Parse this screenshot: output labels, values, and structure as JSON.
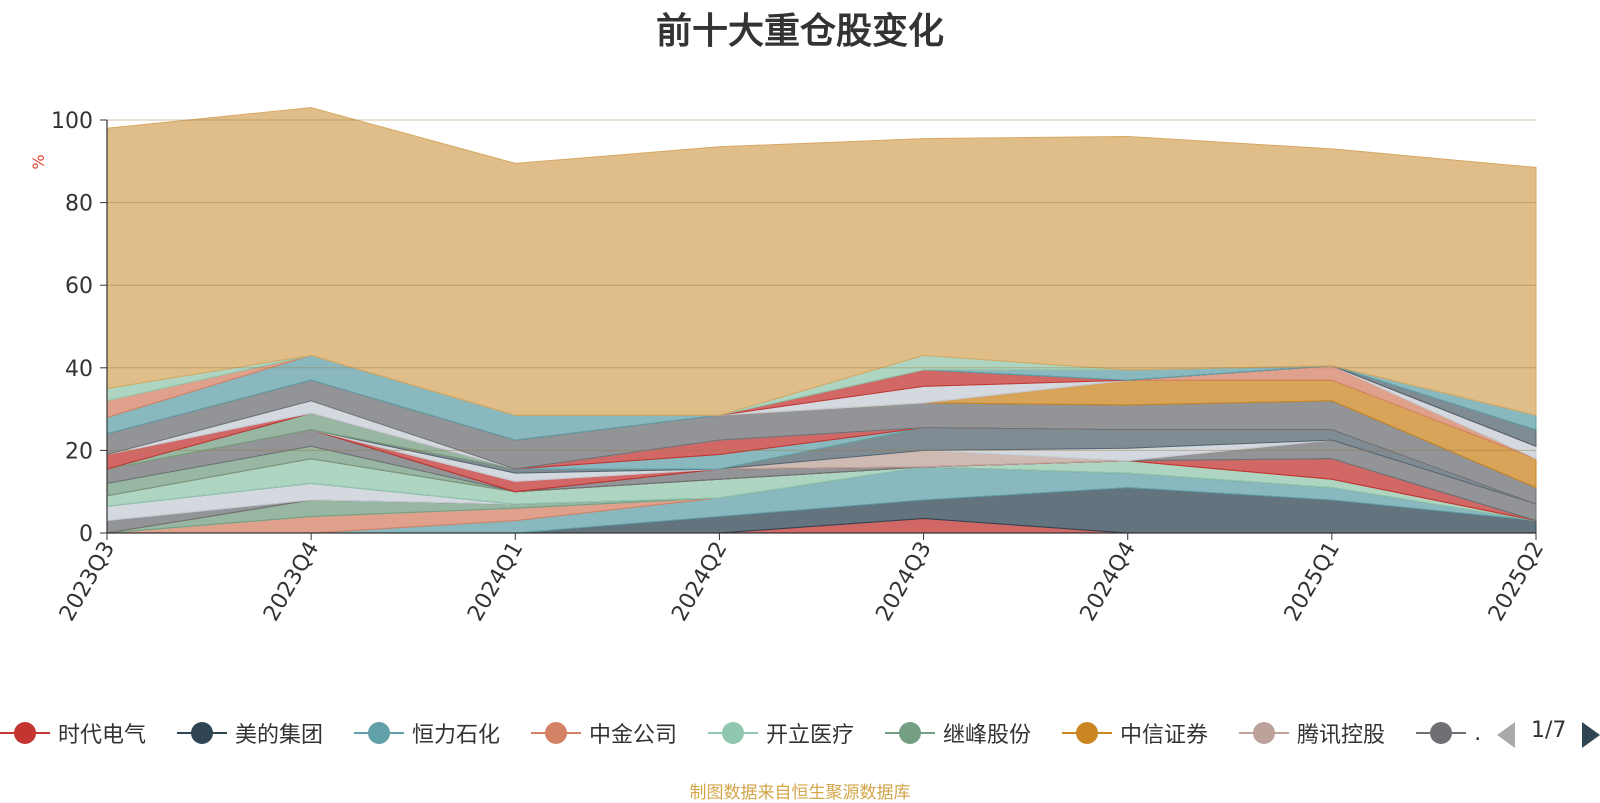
{
  "page": {
    "title": "前十大重仓股变化",
    "source": "制图数据来自恒生聚源数据库",
    "pager": "1/7"
  },
  "chart_data": {
    "type": "area",
    "stacked": true,
    "title": "前十大重仓股变化",
    "ylabel": "%",
    "xlabel": "",
    "ylim": [
      0,
      100
    ],
    "yticks": [
      0,
      20,
      40,
      60,
      80,
      100
    ],
    "grid": true,
    "legend_position": "bottom",
    "categories": [
      "2023Q3",
      "2023Q4",
      "2024Q1",
      "2024Q2",
      "2024Q3",
      "2024Q4",
      "2025Q1",
      "2025Q2"
    ],
    "series": [
      {
        "name": "时代电气",
        "color": "#c23531",
        "values": [
          0,
          0,
          0,
          0,
          3.5,
          0,
          0,
          0
        ]
      },
      {
        "name": "美的集团",
        "color": "#2f4554",
        "values": [
          0,
          0,
          0,
          4,
          4.5,
          11,
          8,
          3
        ]
      },
      {
        "name": "恒力石化",
        "color": "#61a0a8",
        "values": [
          0,
          0,
          3,
          4.5,
          8,
          3.5,
          3,
          0
        ]
      },
      {
        "name": "中金公司",
        "color": "#d48265",
        "values": [
          0,
          4,
          3,
          0,
          0,
          0,
          0,
          0
        ]
      },
      {
        "name": "开立医疗",
        "color": "#91c7ae",
        "values": [
          0,
          0,
          0,
          0,
          0,
          0,
          0,
          0
        ]
      },
      {
        "name": "继峰股份",
        "color": "#749f83",
        "values": [
          0,
          4,
          1,
          0,
          0,
          0,
          0,
          0
        ]
      },
      {
        "name": "中信证券",
        "color": "#ca8622",
        "values": [
          0,
          0,
          0,
          0,
          0,
          0,
          0,
          0
        ]
      },
      {
        "name": "腾讯控股",
        "color": "#bda29a",
        "values": [
          0,
          0,
          0,
          0,
          0,
          0,
          0,
          0
        ]
      },
      {
        "name": "…",
        "color": "#6e7074",
        "values": [
          3,
          0,
          0,
          0,
          0,
          0,
          0,
          0
        ]
      },
      {
        "name": "",
        "color": "#546570",
        "values": [
          0,
          0,
          0,
          0,
          0,
          0,
          0,
          0
        ]
      },
      {
        "name": "",
        "color": "#c4ccd3",
        "values": [
          3.5,
          4,
          0,
          0,
          0,
          0,
          0,
          0
        ]
      },
      {
        "name": "",
        "color": "#6e7074",
        "values": [
          0,
          0,
          0,
          0,
          0,
          0,
          0,
          0
        ]
      },
      {
        "name": "",
        "color": "#61a0a8",
        "values": [
          0,
          0,
          0,
          0,
          0,
          0,
          0,
          0
        ]
      },
      {
        "name": "",
        "color": "#91c7ae",
        "values": [
          2.5,
          6,
          3,
          4.5,
          0,
          3,
          2,
          0
        ]
      },
      {
        "name": "",
        "color": "#749f83",
        "values": [
          0,
          0,
          0,
          0,
          0,
          0,
          0,
          0
        ]
      },
      {
        "name": "",
        "color": "#d48265",
        "values": [
          0,
          0,
          0,
          0,
          0,
          0,
          0,
          0
        ]
      },
      {
        "name": "",
        "color": "#c23531",
        "values": [
          0,
          0,
          0,
          0,
          0,
          0,
          5,
          0
        ]
      },
      {
        "name": "",
        "color": "#749f83",
        "values": [
          3,
          3,
          0,
          0,
          0,
          0,
          0,
          0
        ]
      },
      {
        "name": "",
        "color": "#6e7074",
        "values": [
          3.5,
          4,
          0,
          2.5,
          0,
          0,
          4.5,
          4
        ]
      },
      {
        "name": "",
        "color": "#546570",
        "values": [
          0,
          0,
          0,
          0,
          0,
          0,
          0,
          0
        ]
      },
      {
        "name": "",
        "color": "#c23531",
        "values": [
          0,
          0,
          2.5,
          0,
          0,
          0,
          0,
          0
        ]
      },
      {
        "name": "",
        "color": "#bda29a",
        "values": [
          0,
          0,
          0,
          0,
          4,
          0,
          0,
          0
        ]
      },
      {
        "name": "",
        "color": "#c4ccd3",
        "values": [
          0,
          0,
          2,
          0,
          0,
          3,
          0,
          0
        ]
      },
      {
        "name": "",
        "color": "#546570",
        "values": [
          0,
          0,
          1,
          0,
          5.5,
          4.5,
          2.5,
          0
        ]
      },
      {
        "name": "",
        "color": "#ca8622",
        "values": [
          0,
          0,
          0,
          0,
          0,
          0,
          0,
          0
        ]
      },
      {
        "name": "",
        "color": "#749f83",
        "values": [
          0,
          4,
          0,
          0,
          0,
          0,
          0,
          0
        ]
      },
      {
        "name": "",
        "color": "#61a0a8",
        "values": [
          0,
          0,
          0,
          3.5,
          0,
          0,
          0,
          0
        ]
      },
      {
        "name": "",
        "color": "#c23531",
        "values": [
          3.5,
          0,
          0,
          3.5,
          0,
          0,
          0,
          0
        ]
      },
      {
        "name": "",
        "color": "#c4ccd3",
        "values": [
          0,
          3,
          0,
          0,
          0,
          0,
          0,
          0
        ]
      },
      {
        "name": "",
        "color": "#6e7074",
        "values": [
          5,
          5,
          7,
          6,
          6,
          6,
          7,
          4
        ]
      },
      {
        "name": "",
        "color": "#ca8622",
        "values": [
          0,
          0,
          0,
          0,
          0,
          6,
          5,
          7
        ]
      },
      {
        "name": "",
        "color": "#d48265",
        "values": [
          0,
          0,
          0,
          0,
          0,
          0,
          3.5,
          0
        ]
      },
      {
        "name": "",
        "color": "#c4ccd3",
        "values": [
          0,
          0,
          0,
          0,
          4,
          0,
          0,
          3
        ]
      },
      {
        "name": "",
        "color": "#c23531",
        "values": [
          0,
          0,
          0,
          0,
          4,
          0,
          0,
          0
        ]
      },
      {
        "name": "",
        "color": "#546570",
        "values": [
          0,
          0,
          0,
          0,
          0,
          0,
          0,
          4
        ]
      },
      {
        "name": "",
        "color": "#61a0a8",
        "values": [
          4,
          6,
          6,
          0,
          0,
          2.5,
          0,
          3.5
        ]
      },
      {
        "name": "",
        "color": "#d48265",
        "values": [
          4,
          0,
          0,
          0,
          0,
          0,
          0,
          0
        ]
      },
      {
        "name": "",
        "color": "#91c7ae",
        "values": [
          3,
          0,
          0,
          0,
          3.5,
          0,
          0,
          0
        ]
      },
      {
        "name": "",
        "color": "#d6a862",
        "values": [
          63,
          60,
          61,
          65,
          52.5,
          56.5,
          52.5,
          60
        ]
      }
    ]
  }
}
